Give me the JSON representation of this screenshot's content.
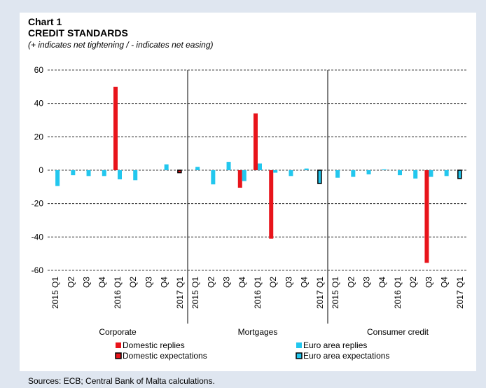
{
  "chart_data": {
    "type": "bar",
    "title": "Chart 1",
    "subtitle": "CREDIT STANDARDS",
    "note": "(+ indicates net tightening / - indicates net easing)",
    "source": "Sources: ECB; Central Bank of Malta calculations.",
    "categories": [
      "2015 Q1",
      "Q2",
      "Q3",
      "Q4",
      "2016 Q1",
      "Q2",
      "Q3",
      "Q4",
      "2017 Q1"
    ],
    "panels": [
      "Corporate",
      "Mortgages",
      "Consumer credit"
    ],
    "ylim": [
      -60,
      60
    ],
    "yticks": [
      60,
      40,
      20,
      0,
      -20,
      -40,
      -60
    ],
    "grid": true,
    "series": [
      {
        "name": "Domestic replies",
        "color": "#e8141b",
        "outline": false,
        "values": [
          [
            0,
            0,
            0,
            0,
            50,
            0,
            0,
            0,
            null
          ],
          [
            0,
            0,
            0,
            -10.5,
            34,
            -41,
            0,
            0,
            null
          ],
          [
            0,
            0,
            0,
            0,
            0,
            0,
            -55.5,
            0,
            null
          ]
        ]
      },
      {
        "name": "Euro area replies",
        "color": "#22c7ee",
        "outline": false,
        "values": [
          [
            -9.5,
            -3,
            -3.5,
            -3.5,
            -5.5,
            -6,
            0,
            3.5,
            null
          ],
          [
            2,
            -8.5,
            5,
            -6.5,
            4,
            -1.5,
            -3.5,
            1,
            null
          ],
          [
            -4.5,
            -4,
            -2.5,
            0.5,
            -3,
            -5,
            -4,
            -3.5,
            null
          ]
        ]
      },
      {
        "name": "Domestic expectations",
        "color": "#e8141b",
        "outline": true,
        "values": [
          [
            null,
            null,
            null,
            null,
            null,
            null,
            null,
            null,
            -1.5
          ],
          [
            null,
            null,
            null,
            null,
            null,
            null,
            null,
            null,
            0
          ],
          [
            null,
            null,
            null,
            null,
            null,
            null,
            null,
            null,
            0
          ]
        ]
      },
      {
        "name": "Euro area expectations",
        "color": "#22c7ee",
        "outline": true,
        "values": [
          [
            null,
            null,
            null,
            null,
            null,
            null,
            null,
            null,
            0
          ],
          [
            null,
            null,
            null,
            null,
            null,
            null,
            null,
            null,
            -8
          ],
          [
            null,
            null,
            null,
            null,
            null,
            null,
            null,
            null,
            -5
          ]
        ]
      }
    ]
  }
}
